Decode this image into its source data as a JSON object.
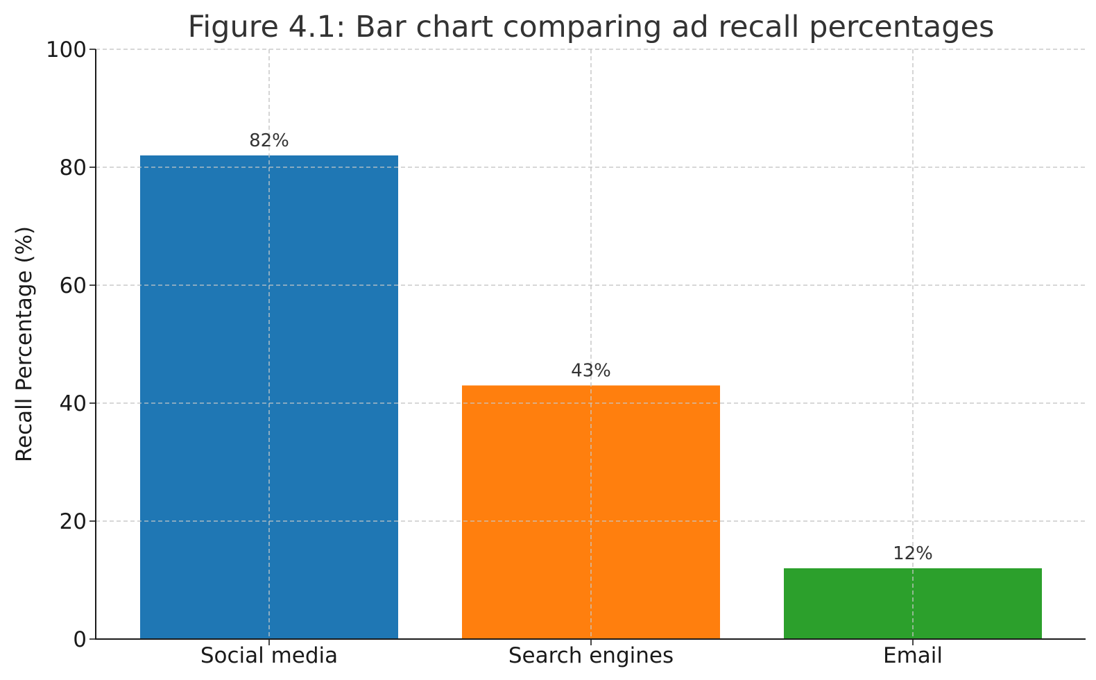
{
  "chart_data": {
    "type": "bar",
    "title": "Figure 4.1: Bar chart comparing ad recall percentages",
    "xlabel": "",
    "ylabel": "Recall Percentage (%)",
    "categories": [
      "Social media",
      "Search engines",
      "Email"
    ],
    "values": [
      82,
      43,
      12
    ],
    "data_labels": [
      "82%",
      "43%",
      "12%"
    ],
    "colors": [
      "#1f77b4",
      "#ff7f0e",
      "#2ca02c"
    ],
    "ylim": [
      0,
      100
    ],
    "yticks": [
      0,
      20,
      40,
      60,
      80,
      100
    ],
    "ytick_labels": [
      "0",
      "20",
      "40",
      "60",
      "80",
      "100"
    ],
    "grid": true,
    "legend": "none"
  }
}
